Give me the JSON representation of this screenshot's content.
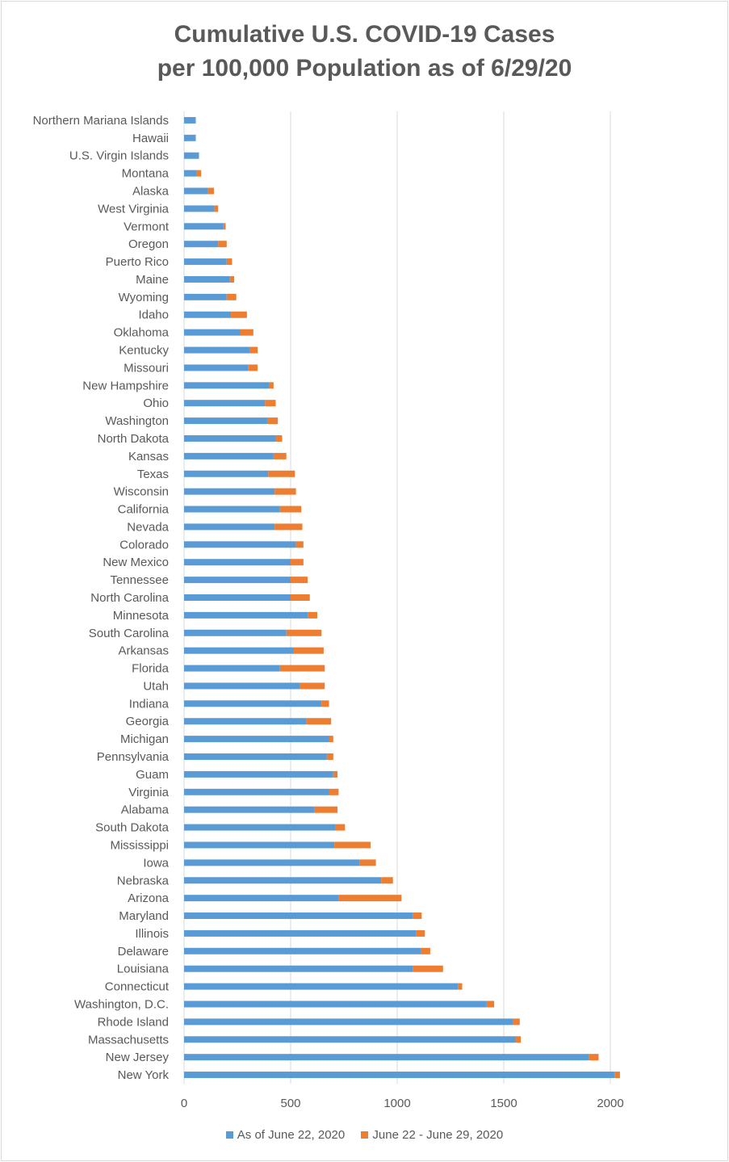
{
  "chart_data": {
    "type": "bar",
    "stacked": true,
    "orientation": "horizontal",
    "title_line1": "Cumulative U.S. COVID-19 Cases",
    "title_line2": "per 100,000 Population as of 6/29/20",
    "xlim": [
      0,
      2000
    ],
    "xticks": [
      0,
      500,
      1000,
      1500,
      2000
    ],
    "grid": "vertical",
    "legend_position": "bottom",
    "categories": [
      "Northern Mariana Islands",
      "Hawaii",
      "U.S. Virgin Islands",
      "Montana",
      "Alaska",
      "West Virginia",
      "Vermont",
      "Oregon",
      "Puerto Rico",
      "Maine",
      "Wyoming",
      "Idaho",
      "Oklahoma",
      "Kentucky",
      "Missouri",
      "New Hampshire",
      "Ohio",
      "Washington",
      "North Dakota",
      "Kansas",
      "Texas",
      "Wisconsin",
      "California",
      "Nevada",
      "Colorado",
      "New Mexico",
      "Tennessee",
      "North Carolina",
      "Minnesota",
      "South Carolina",
      "Arkansas",
      "Florida",
      "Utah",
      "Indiana",
      "Georgia",
      "Michigan",
      "Pennsylvania",
      "Guam",
      "Virginia",
      "Alabama",
      "South Dakota",
      "Mississippi",
      "Iowa",
      "Nebraska",
      "Arizona",
      "Maryland",
      "Illinois",
      "Delaware",
      "Louisiana",
      "Connecticut",
      "Washington, D.C.",
      "Rhode Island",
      "Massachusetts",
      "New Jersey",
      "New York"
    ],
    "series": [
      {
        "name": "As of June 22, 2020",
        "color": "#5b9bd5",
        "values": [
          55,
          55,
          70,
          60,
          110,
          140,
          185,
          160,
          200,
          215,
          200,
          220,
          265,
          310,
          300,
          400,
          380,
          390,
          430,
          420,
          395,
          425,
          450,
          425,
          525,
          500,
          500,
          500,
          580,
          480,
          515,
          450,
          545,
          645,
          575,
          680,
          670,
          700,
          680,
          610,
          710,
          705,
          825,
          925,
          725,
          1075,
          1090,
          1110,
          1075,
          1285,
          1420,
          1545,
          1555,
          1900,
          2020
        ]
      },
      {
        "name": "June 22 - June 29, 2020",
        "color": "#ed7d31",
        "values": [
          0,
          0,
          0,
          20,
          30,
          20,
          10,
          40,
          25,
          20,
          45,
          75,
          60,
          35,
          45,
          20,
          50,
          50,
          30,
          60,
          125,
          100,
          100,
          130,
          35,
          60,
          80,
          90,
          45,
          165,
          140,
          210,
          115,
          35,
          115,
          20,
          30,
          20,
          45,
          110,
          45,
          170,
          75,
          55,
          295,
          40,
          40,
          45,
          140,
          20,
          35,
          30,
          25,
          45,
          25
        ]
      }
    ]
  }
}
